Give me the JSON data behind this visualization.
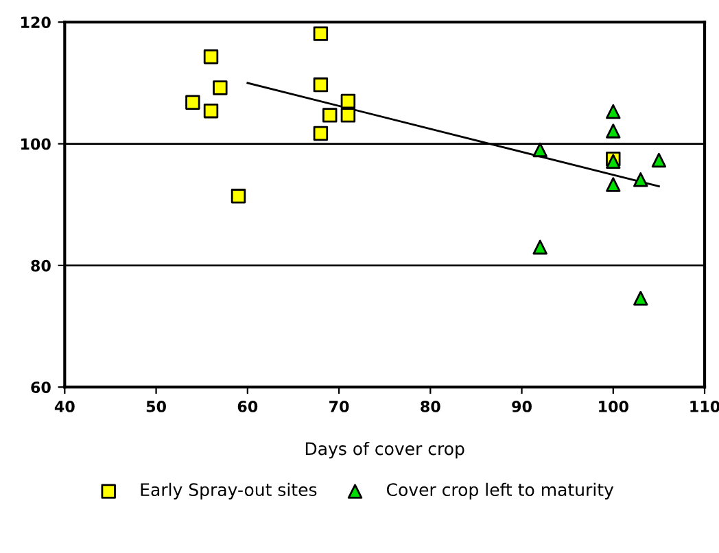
{
  "chart_data": {
    "type": "scatter",
    "xlabel": "Days of cover crop",
    "xlim": [
      40,
      110
    ],
    "xticks": [
      40,
      50,
      60,
      70,
      80,
      90,
      100,
      110
    ],
    "ylim": [
      60,
      120
    ],
    "yticks": [
      60,
      80,
      100,
      120
    ],
    "grid": "y",
    "legend": "bottom",
    "series": [
      {
        "name": "Early Spray-out sites",
        "color": "#ffff00",
        "marker": "square",
        "x": [
          54,
          56,
          56,
          57,
          59,
          68,
          68,
          68,
          69,
          71,
          71,
          100
        ],
        "values": [
          106.8,
          114.3,
          105.4,
          109.2,
          91.4,
          118.1,
          109.7,
          101.7,
          104.7,
          107,
          104.7,
          97.5
        ]
      },
      {
        "name": "Cover crop left to maturity",
        "color": "#00dd00",
        "marker": "triangle",
        "x": [
          92,
          92,
          100,
          100,
          100,
          100,
          103,
          105,
          103
        ],
        "values": [
          99,
          83,
          105.3,
          102.1,
          97.1,
          93.3,
          94.1,
          97.3,
          74.6
        ]
      },
      {
        "type": "line",
        "color": "#000000",
        "marker": "none",
        "x": [
          60,
          105
        ],
        "values": [
          110,
          93
        ]
      }
    ]
  }
}
